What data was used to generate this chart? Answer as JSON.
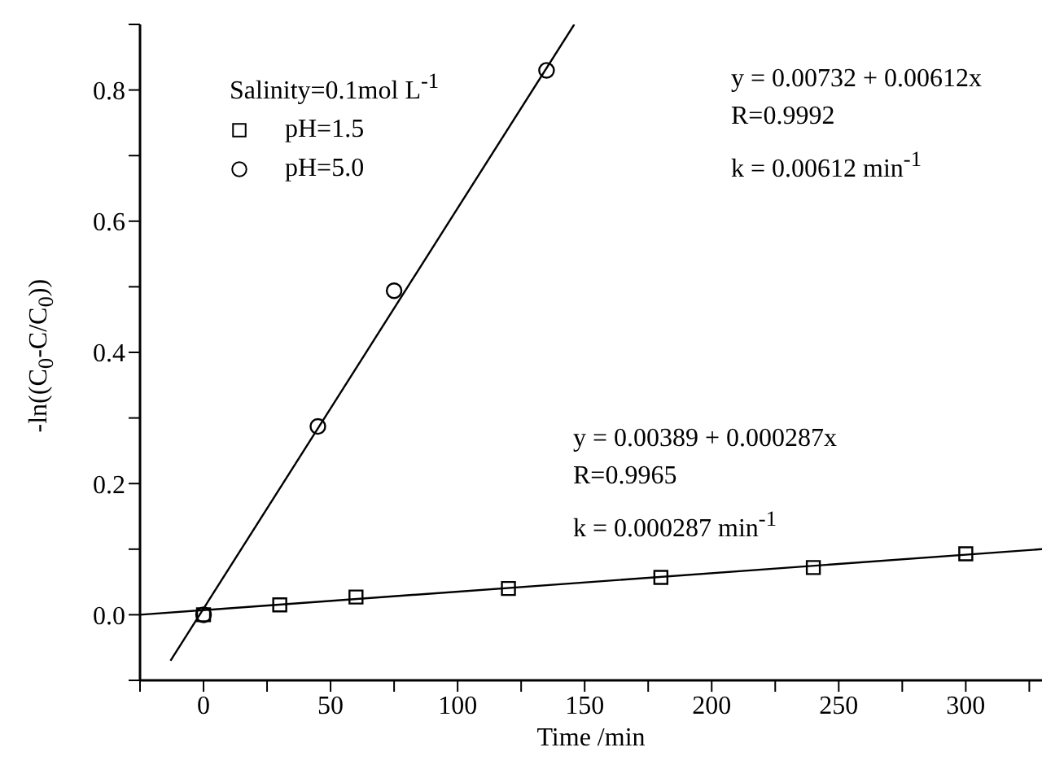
{
  "chart_data": {
    "type": "scatter",
    "xlabel": "Time /min",
    "ylabel": "-ln((C$_{0}$-C/C$_{0}$))",
    "legend_title": "Salinity=0.1mol L$^{-1}$",
    "legend": "top left",
    "xlim": [
      -25,
      330
    ],
    "xticks": [
      {
        "value": -25,
        "label": null
      },
      0,
      {
        "value": 25,
        "label": null
      },
      50,
      {
        "value": 75,
        "label": null
      },
      100,
      {
        "value": 125,
        "label": null
      },
      150,
      {
        "value": 175,
        "label": null
      },
      200,
      {
        "value": 225,
        "label": null
      },
      250,
      {
        "value": 275,
        "label": null
      },
      300,
      {
        "value": 325,
        "label": null
      }
    ],
    "ylim": [
      -0.1,
      0.9
    ],
    "yticks": [
      {
        "value": -0.1,
        "label": null
      },
      {
        "value": 0,
        "label": "0.0"
      },
      {
        "value": 0.1,
        "label": null
      },
      0.2,
      {
        "value": 0.3,
        "label": null
      },
      0.4,
      {
        "value": 0.5,
        "label": null
      },
      0.6,
      {
        "value": 0.7,
        "label": null
      },
      0.8,
      {
        "value": 0.9,
        "label": null
      }
    ],
    "grid": false,
    "series": [
      {
        "name": "pH=1.5",
        "marker": "square",
        "color": "#000000",
        "x": [
          0,
          30,
          60,
          120,
          180,
          240,
          300
        ],
        "values": [
          0,
          0.015,
          0.027,
          0.04,
          0.057,
          0.072,
          0.093
        ]
      },
      {
        "name": "pH=5.0",
        "marker": "circle",
        "color": "#000000",
        "x": [
          0,
          45,
          75,
          135
        ],
        "values": [
          0,
          0.287,
          0.494,
          0.83
        ]
      },
      {
        "type": "line",
        "marker": "none",
        "color": "#000000",
        "x": [
          -13,
          145.9
        ],
        "values": [
          -0.07,
          0.9
        ]
      },
      {
        "type": "line",
        "marker": "none",
        "color": "#000000",
        "x": [
          -25,
          330
        ],
        "values": [
          0,
          0.1
        ]
      }
    ],
    "annotations": [
      "y = 0.00732 + 0.00612x",
      "R=0.9992",
      "k = 0.00612 min$^{-1}$",
      "y = 0.00389 + 0.000287x",
      "R=0.9965",
      "k = 0.000287 min$^{-1}$"
    ]
  }
}
